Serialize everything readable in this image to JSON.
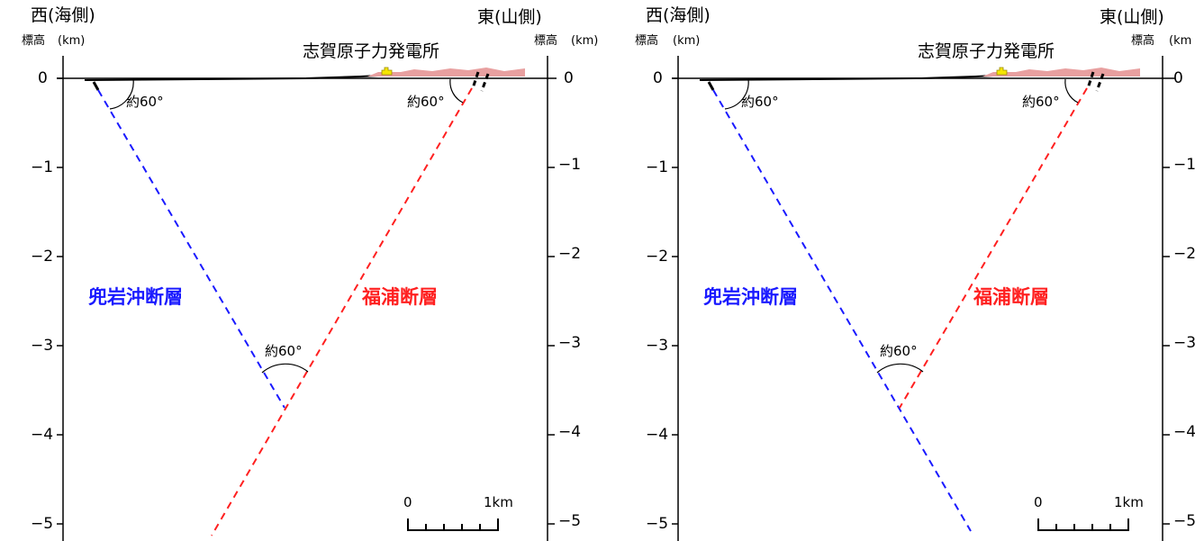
{
  "panels": [
    {
      "west_label": "西(海側)",
      "east_label": "東(山側)",
      "elevation_label_left": "標高",
      "unit_left": "(km)",
      "elevation_label_right": "標高",
      "unit_right": "(km)",
      "plant_label": "志賀原子力発電所",
      "left_ticks": [
        "0",
        "−1",
        "−2",
        "−3",
        "−4",
        "−5"
      ],
      "right_ticks": [
        "0",
        "−1",
        "−2",
        "−3",
        "−4",
        "−5"
      ],
      "fault_blue": {
        "name": "兜岩沖断層",
        "color": "#1a1aff",
        "dip_label": "約60°"
      },
      "fault_red": {
        "name": "福浦断層",
        "color": "#ff2020",
        "dip_label": "約60°"
      },
      "intersection_angle_label": "約60°",
      "scale_bar": {
        "start": "0",
        "end": "1km"
      }
    },
    {
      "west_label": "西(海側)",
      "east_label": "東(山側)",
      "elevation_label_left": "標高",
      "unit_left": "(km)",
      "elevation_label_right": "標高",
      "unit_right": "(km",
      "plant_label": "志賀原子力発電所",
      "left_ticks": [
        "0",
        "−1",
        "−2",
        "−3",
        "−4",
        "−5"
      ],
      "right_ticks": [
        "0",
        "−1",
        "−2",
        "−3",
        "−4",
        "−5"
      ],
      "fault_blue": {
        "name": "兜岩沖断層",
        "color": "#1a1aff",
        "dip_label": "約60°"
      },
      "fault_red": {
        "name": "福浦断層",
        "color": "#ff2020",
        "dip_label": "約60°"
      },
      "intersection_angle_label": "約60°",
      "scale_bar": {
        "start": "0",
        "end": "1km"
      }
    }
  ],
  "colors": {
    "terrain": "#e8a0a0",
    "plant_marker": "#f5e600",
    "axis": "#000000"
  }
}
